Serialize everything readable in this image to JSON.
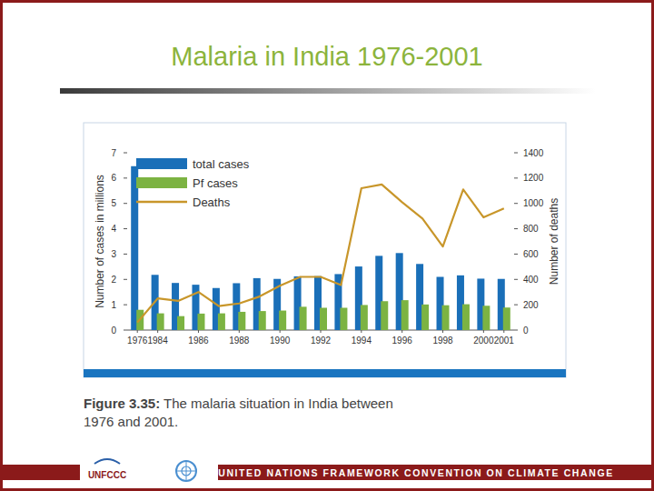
{
  "chart_data": {
    "type": "bar",
    "title": "Malaria in India 1976-2001",
    "categories": [
      "1976",
      "1984",
      null,
      "1986",
      null,
      "1988",
      null,
      "1990",
      null,
      "1992",
      null,
      "1994",
      null,
      "1996",
      null,
      "1998",
      null,
      "2000",
      "2001"
    ],
    "series": [
      {
        "name": "total cases",
        "color": "#1a6fb8",
        "type": "bar",
        "values": [
          6.47,
          2.18,
          1.86,
          1.79,
          1.66,
          1.85,
          2.05,
          2.02,
          2.12,
          2.13,
          2.21,
          2.51,
          2.93,
          3.04,
          2.61,
          2.1,
          2.16,
          2.03,
          2.02
        ]
      },
      {
        "name": "Pf cases",
        "color": "#7cb342",
        "type": "bar",
        "values": [
          0.8,
          0.66,
          0.55,
          0.65,
          0.66,
          0.72,
          0.75,
          0.77,
          0.92,
          0.88,
          0.88,
          0.99,
          1.14,
          1.18,
          1.01,
          0.98,
          1.02,
          0.96,
          0.89
        ]
      },
      {
        "name": "Deaths",
        "color": "#c8962a",
        "type": "line",
        "axis": "y2",
        "values": [
          60,
          250,
          230,
          300,
          190,
          210,
          265,
          350,
          420,
          420,
          355,
          1120,
          1150,
          1010,
          880,
          660,
          1110,
          890,
          960
        ]
      }
    ],
    "ylabel": "Number of cases in millions",
    "y2label": "Number of deaths",
    "ylim": [
      0,
      7
    ],
    "yticks": [
      0,
      1,
      2,
      3,
      4,
      5,
      6,
      7
    ],
    "y2lim": [
      0,
      1400
    ],
    "y2ticks": [
      0,
      200,
      400,
      600,
      800,
      1000,
      1200,
      1400
    ],
    "grid": false,
    "legend": "upper-left"
  },
  "slide": {
    "caption_label": "Figure 3.35:",
    "caption": "The malaria situation in India between 1976 and 2001.",
    "footer": "UNITED NATIONS FRAMEWORK CONVENTION ON CLIMATE CHANGE",
    "logo_text": "UNFCCC"
  }
}
